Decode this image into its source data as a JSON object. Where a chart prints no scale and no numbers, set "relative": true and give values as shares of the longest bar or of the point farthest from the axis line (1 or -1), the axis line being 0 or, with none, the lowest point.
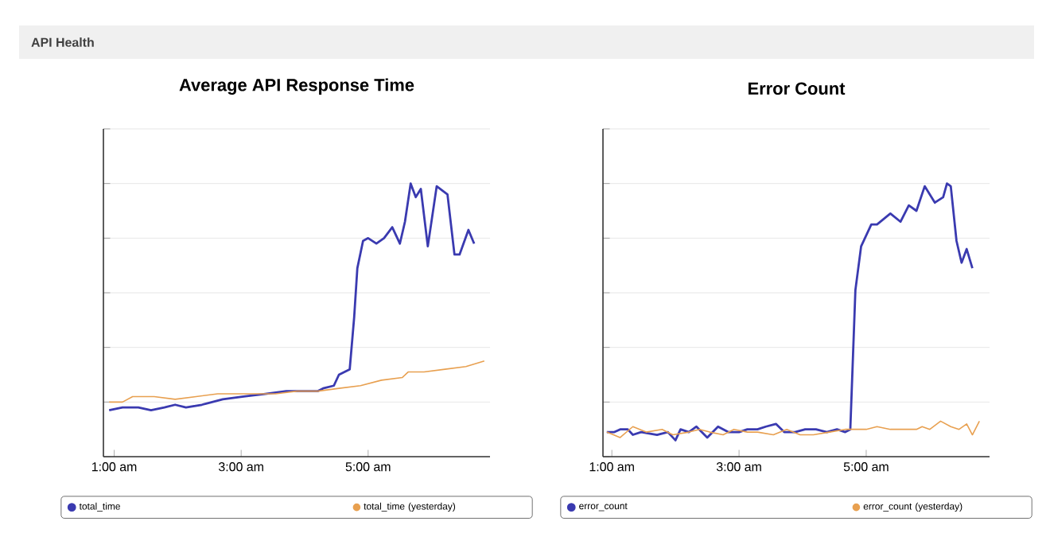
{
  "chart_data": [
    {
      "type": "line",
      "title": "Average API Response Time",
      "annotations": [
        "API Health"
      ],
      "relative": true,
      "grid": "y",
      "legend": "bottom",
      "xlim": [
        0.83,
        6.92
      ],
      "xticks": [
        {
          "value": 1,
          "label": "1:00 am"
        },
        {
          "value": 3,
          "label": "3:00 am"
        },
        {
          "value": 5,
          "label": "5:00 am"
        }
      ],
      "series": [
        {
          "name": "total_time",
          "color": "#3a3ab0",
          "x": [
            0.92,
            1.13,
            1.38,
            1.58,
            1.79,
            1.96,
            2.13,
            2.38,
            2.71,
            3.04,
            3.38,
            3.71,
            4.04,
            4.21,
            4.29,
            4.46,
            4.54,
            4.71,
            4.78,
            4.83,
            4.92,
            5.0,
            5.13,
            5.25,
            5.38,
            5.5,
            5.58,
            5.67,
            5.75,
            5.83,
            5.94,
            6.08,
            6.25,
            6.36,
            6.44,
            6.58,
            6.67
          ],
          "values": [
            0.17,
            0.18,
            0.18,
            0.17,
            0.18,
            0.19,
            0.18,
            0.19,
            0.21,
            0.22,
            0.23,
            0.24,
            0.24,
            0.24,
            0.25,
            0.26,
            0.3,
            0.32,
            0.51,
            0.69,
            0.79,
            0.8,
            0.78,
            0.8,
            0.84,
            0.78,
            0.86,
            1.0,
            0.95,
            0.98,
            0.77,
            0.99,
            0.96,
            0.74,
            0.74,
            0.83,
            0.78
          ]
        },
        {
          "name": "total_time (yesterday)",
          "color": "#e8a050",
          "x": [
            0.92,
            1.13,
            1.29,
            1.63,
            1.96,
            2.29,
            2.63,
            2.88,
            3.21,
            3.54,
            3.88,
            4.21,
            4.54,
            4.88,
            5.21,
            5.54,
            5.63,
            5.88,
            6.21,
            6.54,
            6.83
          ],
          "values": [
            0.2,
            0.2,
            0.22,
            0.22,
            0.21,
            0.22,
            0.23,
            0.23,
            0.23,
            0.23,
            0.24,
            0.24,
            0.25,
            0.26,
            0.28,
            0.29,
            0.31,
            0.31,
            0.32,
            0.33,
            0.35
          ]
        }
      ]
    },
    {
      "type": "line",
      "title": "Error Count",
      "relative": true,
      "grid": "y",
      "legend": "bottom",
      "xlim": [
        0.86,
        6.94
      ],
      "xticks": [
        {
          "value": 1,
          "label": "1:00 am"
        },
        {
          "value": 3,
          "label": "3:00 am"
        },
        {
          "value": 5,
          "label": "5:00 am"
        }
      ],
      "series": [
        {
          "name": "error_count",
          "color": "#3a3ab0",
          "x": [
            0.92,
            1.04,
            1.13,
            1.25,
            1.33,
            1.46,
            1.71,
            1.88,
            2.0,
            2.08,
            2.21,
            2.33,
            2.5,
            2.67,
            2.83,
            3.0,
            3.13,
            3.29,
            3.42,
            3.58,
            3.71,
            3.88,
            4.04,
            4.21,
            4.38,
            4.54,
            4.67,
            4.75,
            4.83,
            4.92,
            5.08,
            5.17,
            5.38,
            5.54,
            5.67,
            5.79,
            5.92,
            6.08,
            6.21,
            6.27,
            6.33,
            6.42,
            6.5,
            6.58,
            6.67
          ],
          "values": [
            0.09,
            0.09,
            0.1,
            0.1,
            0.08,
            0.09,
            0.08,
            0.09,
            0.06,
            0.1,
            0.09,
            0.11,
            0.07,
            0.11,
            0.09,
            0.09,
            0.1,
            0.1,
            0.11,
            0.12,
            0.09,
            0.09,
            0.1,
            0.1,
            0.09,
            0.1,
            0.09,
            0.1,
            0.61,
            0.77,
            0.85,
            0.85,
            0.89,
            0.86,
            0.92,
            0.9,
            0.99,
            0.93,
            0.95,
            1.0,
            0.99,
            0.79,
            0.71,
            0.76,
            0.69
          ]
        },
        {
          "name": "error_count (yesterday)",
          "color": "#e8a050",
          "x": [
            0.92,
            1.13,
            1.33,
            1.54,
            1.79,
            1.96,
            2.21,
            2.38,
            2.54,
            2.75,
            2.92,
            3.13,
            3.29,
            3.54,
            3.75,
            3.96,
            4.17,
            4.42,
            4.67,
            5.0,
            5.17,
            5.38,
            5.63,
            5.79,
            5.88,
            6.0,
            6.17,
            6.33,
            6.46,
            6.58,
            6.67,
            6.78
          ],
          "values": [
            0.09,
            0.07,
            0.11,
            0.09,
            0.1,
            0.08,
            0.09,
            0.1,
            0.09,
            0.08,
            0.1,
            0.09,
            0.09,
            0.08,
            0.1,
            0.08,
            0.08,
            0.09,
            0.1,
            0.1,
            0.11,
            0.1,
            0.1,
            0.1,
            0.11,
            0.1,
            0.13,
            0.11,
            0.1,
            0.12,
            0.08,
            0.13
          ]
        }
      ]
    }
  ]
}
